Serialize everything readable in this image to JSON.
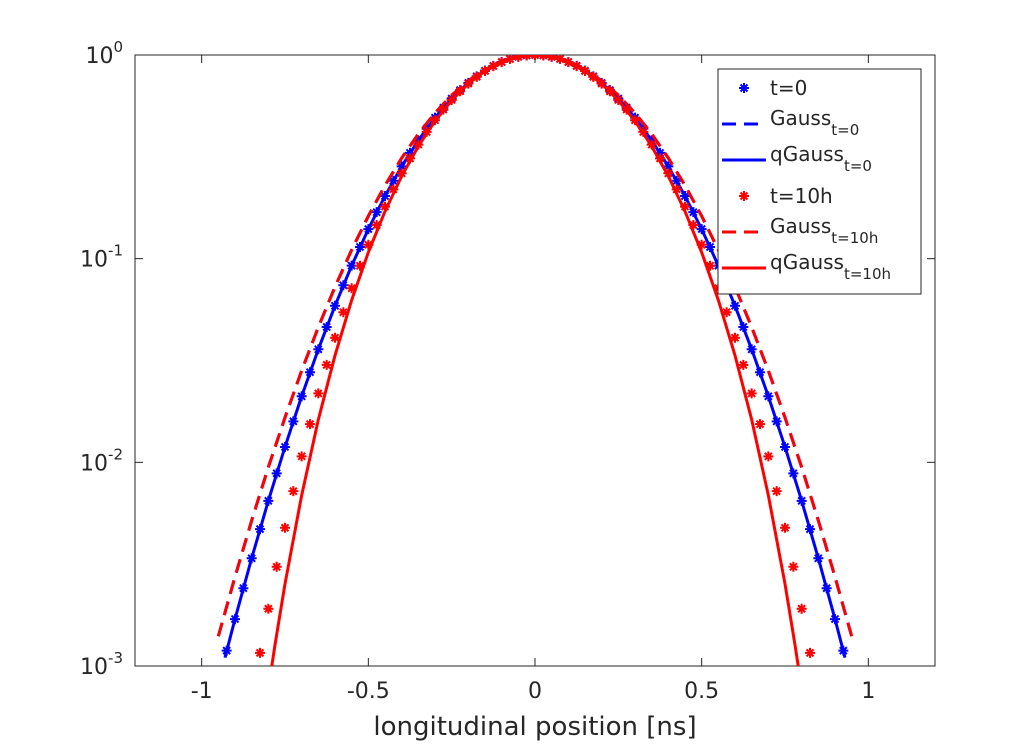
{
  "chart_data": {
    "type": "line",
    "xlabel": "longitudinal position [ns]",
    "xlim": [
      -1.2,
      1.2
    ],
    "ylim": [
      0.001,
      1
    ],
    "yscale": "log",
    "xticks": [
      -1,
      -0.5,
      0,
      0.5,
      1
    ],
    "yticks": [
      {
        "value": 0.001,
        "label": "10",
        "exponent": "-3"
      },
      {
        "value": 0.01,
        "label": "10",
        "exponent": "-2"
      },
      {
        "value": 0.1,
        "label": "10",
        "exponent": "-1"
      },
      {
        "value": 1,
        "label": "10",
        "exponent": "0"
      }
    ],
    "legend": "upper right",
    "series": [
      {
        "name": "t=0",
        "color": "#0000ff",
        "style": "marker",
        "x": [
          -0.925,
          -0.9,
          -0.875,
          -0.85,
          -0.825,
          -0.8,
          -0.775,
          -0.75,
          -0.725,
          -0.7,
          -0.675,
          -0.65,
          -0.625,
          -0.6,
          -0.575,
          -0.55,
          -0.525,
          -0.5,
          -0.475,
          -0.45,
          -0.425,
          -0.4,
          -0.375,
          -0.35,
          -0.325,
          -0.3,
          -0.275,
          -0.25,
          -0.225,
          -0.2,
          -0.175,
          -0.15,
          -0.125,
          -0.1,
          -0.075,
          -0.05,
          -0.025,
          0,
          0.025,
          0.05,
          0.075,
          0.1,
          0.125,
          0.15,
          0.175,
          0.2,
          0.225,
          0.25,
          0.275,
          0.3,
          0.325,
          0.35,
          0.375,
          0.4,
          0.425,
          0.45,
          0.475,
          0.5,
          0.525,
          0.55,
          0.575,
          0.6,
          0.625,
          0.65,
          0.675,
          0.7,
          0.725,
          0.75,
          0.775,
          0.8,
          0.825,
          0.85,
          0.875,
          0.9,
          0.925
        ],
        "values": [
          0.00119,
          0.0017,
          0.00241,
          0.00338,
          0.0047,
          0.00647,
          0.00883,
          0.0119,
          0.0159,
          0.0211,
          0.0277,
          0.0359,
          0.0462,
          0.0587,
          0.074,
          0.0924,
          0.1141,
          0.1397,
          0.1692,
          0.203,
          0.2412,
          0.2837,
          0.3305,
          0.3811,
          0.4353,
          0.4923,
          0.5513,
          0.6113,
          0.6713,
          0.7298,
          0.7858,
          0.8376,
          0.8842,
          0.9243,
          0.9567,
          0.9805,
          0.9951,
          1,
          0.9951,
          0.9805,
          0.9567,
          0.9243,
          0.8842,
          0.8376,
          0.7858,
          0.7298,
          0.6713,
          0.6113,
          0.5513,
          0.4923,
          0.4353,
          0.3811,
          0.3305,
          0.2837,
          0.2412,
          0.203,
          0.1692,
          0.1397,
          0.1141,
          0.0924,
          0.074,
          0.0587,
          0.0462,
          0.0359,
          0.0277,
          0.0211,
          0.0159,
          0.0119,
          0.00883,
          0.00647,
          0.0047,
          0.00338,
          0.00241,
          0.0017,
          0.00119
        ]
      },
      {
        "name": "Gauss",
        "name_sub": "t=0",
        "color": "#0000ff",
        "style": "dashed",
        "x": [
          -0.95,
          -0.9,
          -0.85,
          -0.8,
          -0.75,
          -0.7,
          -0.65,
          -0.6,
          -0.55,
          -0.5,
          -0.45,
          -0.4,
          -0.35,
          -0.3,
          -0.25,
          -0.2,
          -0.15,
          -0.1,
          -0.05,
          0,
          0.05,
          0.1,
          0.15,
          0.2,
          0.25,
          0.3,
          0.35,
          0.4,
          0.45,
          0.5,
          0.55,
          0.6,
          0.65,
          0.7,
          0.75,
          0.8,
          0.85,
          0.9,
          0.95
        ],
        "values": [
          0.0014,
          0.00274,
          0.00518,
          0.00946,
          0.0166,
          0.0282,
          0.0461,
          0.0727,
          0.1104,
          0.1619,
          0.2288,
          0.3118,
          0.4098,
          0.5192,
          0.6343,
          0.7473,
          0.8488,
          0.9298,
          0.982,
          1,
          0.982,
          0.9298,
          0.8488,
          0.7473,
          0.6343,
          0.5192,
          0.4098,
          0.3118,
          0.2288,
          0.1619,
          0.1104,
          0.0727,
          0.0461,
          0.0282,
          0.0166,
          0.00946,
          0.00518,
          0.00274,
          0.0014
        ]
      },
      {
        "name": "qGauss",
        "name_sub": "t=0",
        "color": "#0000ff",
        "style": "solid",
        "x": [
          -0.93,
          -0.9,
          -0.85,
          -0.8,
          -0.75,
          -0.7,
          -0.65,
          -0.6,
          -0.55,
          -0.5,
          -0.45,
          -0.4,
          -0.35,
          -0.3,
          -0.25,
          -0.2,
          -0.15,
          -0.1,
          -0.05,
          0,
          0.05,
          0.1,
          0.15,
          0.2,
          0.25,
          0.3,
          0.35,
          0.4,
          0.45,
          0.5,
          0.55,
          0.6,
          0.65,
          0.7,
          0.75,
          0.8,
          0.85,
          0.9,
          0.93
        ],
        "values": [
          0.0011,
          0.0017,
          0.00338,
          0.00647,
          0.0119,
          0.0211,
          0.0359,
          0.0587,
          0.0924,
          0.1397,
          0.203,
          0.2837,
          0.3811,
          0.4923,
          0.6113,
          0.7298,
          0.8376,
          0.9243,
          0.9805,
          1,
          0.9805,
          0.9243,
          0.8376,
          0.7298,
          0.6113,
          0.4923,
          0.3811,
          0.2837,
          0.203,
          0.1397,
          0.0924,
          0.0587,
          0.0359,
          0.0211,
          0.0119,
          0.00647,
          0.00338,
          0.0017,
          0.0011
        ]
      },
      {
        "name": "t=10h",
        "color": "#ff0000",
        "style": "marker",
        "x": [
          -0.825,
          -0.8,
          -0.775,
          -0.75,
          -0.725,
          -0.7,
          -0.675,
          -0.65,
          -0.625,
          -0.6,
          -0.575,
          -0.55,
          -0.525,
          -0.5,
          -0.475,
          -0.45,
          -0.425,
          -0.4,
          -0.375,
          -0.35,
          -0.325,
          -0.3,
          -0.275,
          -0.25,
          -0.225,
          -0.2,
          -0.175,
          -0.15,
          -0.125,
          -0.1,
          -0.075,
          -0.05,
          -0.025,
          0,
          0.025,
          0.05,
          0.075,
          0.1,
          0.125,
          0.15,
          0.175,
          0.2,
          0.225,
          0.25,
          0.275,
          0.3,
          0.325,
          0.35,
          0.375,
          0.4,
          0.425,
          0.45,
          0.475,
          0.5,
          0.525,
          0.55,
          0.575,
          0.6,
          0.625,
          0.65,
          0.675,
          0.7,
          0.725,
          0.75,
          0.775,
          0.8,
          0.825
        ],
        "values": [
          0.00116,
          0.00191,
          0.00307,
          0.00477,
          0.00722,
          0.0107,
          0.0154,
          0.0218,
          0.0301,
          0.0409,
          0.0546,
          0.0716,
          0.0923,
          0.1171,
          0.1463,
          0.1802,
          0.219,
          0.2626,
          0.3108,
          0.3632,
          0.4193,
          0.4784,
          0.5395,
          0.6016,
          0.6635,
          0.7237,
          0.7813,
          0.8345,
          0.8821,
          0.923,
          0.956,
          0.9802,
          0.995,
          1,
          0.995,
          0.9802,
          0.956,
          0.923,
          0.8821,
          0.8345,
          0.7813,
          0.7237,
          0.6635,
          0.6016,
          0.5395,
          0.4784,
          0.4193,
          0.3632,
          0.3108,
          0.2626,
          0.219,
          0.1802,
          0.1463,
          0.1171,
          0.0923,
          0.0716,
          0.0546,
          0.0409,
          0.0301,
          0.0218,
          0.0154,
          0.0107,
          0.00722,
          0.00477,
          0.00307,
          0.00191,
          0.00116
        ]
      },
      {
        "name": "Gauss",
        "name_sub": "t=10h",
        "color": "#ff0000",
        "style": "dashed",
        "x": [
          -0.95,
          -0.9,
          -0.85,
          -0.8,
          -0.75,
          -0.7,
          -0.65,
          -0.6,
          -0.55,
          -0.5,
          -0.45,
          -0.4,
          -0.35,
          -0.3,
          -0.25,
          -0.2,
          -0.15,
          -0.1,
          -0.05,
          0,
          0.05,
          0.1,
          0.15,
          0.2,
          0.25,
          0.3,
          0.35,
          0.4,
          0.45,
          0.5,
          0.55,
          0.6,
          0.65,
          0.7,
          0.75,
          0.8,
          0.85,
          0.9,
          0.95
        ],
        "values": [
          0.0014,
          0.00274,
          0.00518,
          0.00946,
          0.0166,
          0.0282,
          0.0461,
          0.0727,
          0.1104,
          0.1619,
          0.2288,
          0.3118,
          0.4098,
          0.5192,
          0.6343,
          0.7473,
          0.8488,
          0.9298,
          0.982,
          1,
          0.982,
          0.9298,
          0.8488,
          0.7473,
          0.6343,
          0.5192,
          0.4098,
          0.3118,
          0.2288,
          0.1619,
          0.1104,
          0.0727,
          0.0461,
          0.0282,
          0.0166,
          0.00946,
          0.00518,
          0.00274,
          0.0014
        ]
      },
      {
        "name": "qGauss",
        "name_sub": "t=10h",
        "color": "#ff0000",
        "style": "solid",
        "x": [
          -0.79,
          -0.78,
          -0.75,
          -0.7,
          -0.65,
          -0.6,
          -0.55,
          -0.5,
          -0.45,
          -0.4,
          -0.35,
          -0.3,
          -0.25,
          -0.2,
          -0.15,
          -0.1,
          -0.05,
          0,
          0.05,
          0.1,
          0.15,
          0.2,
          0.25,
          0.3,
          0.35,
          0.4,
          0.45,
          0.5,
          0.55,
          0.6,
          0.65,
          0.7,
          0.75,
          0.78,
          0.79
        ],
        "values": [
          0.00099,
          0.00127,
          0.00253,
          0.00689,
          0.0162,
          0.0335,
          0.0626,
          0.1074,
          0.1708,
          0.2542,
          0.3565,
          0.4737,
          0.5987,
          0.7224,
          0.8339,
          0.9228,
          0.9802,
          1,
          0.9802,
          0.9228,
          0.8339,
          0.7224,
          0.5987,
          0.4737,
          0.3565,
          0.2542,
          0.1708,
          0.1074,
          0.0626,
          0.0335,
          0.0162,
          0.00689,
          0.00253,
          0.00127,
          0.00099
        ]
      }
    ]
  }
}
